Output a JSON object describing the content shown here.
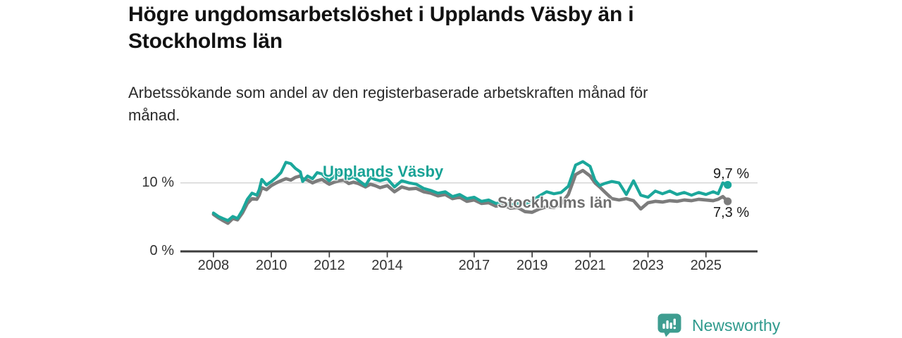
{
  "header": {
    "title_line1": "Högre ungdomsarbetslöshet i Upplands Väsby än i",
    "title_line2": "Stockholms län",
    "subtitle_line1": "Arbetssökande som andel av den registerbaserade arbetskraften månad för",
    "subtitle_line2": "månad."
  },
  "chart_data": {
    "type": "line",
    "title": "Högre ungdomsarbetslöshet i Upplands Väsby än i Stockholms län",
    "subtitle": "Arbetssökande som andel av den registerbaserade arbetskraften månad för månad.",
    "xlabel": "",
    "ylabel": "",
    "xlim": [
      2006.86,
      2026.78
    ],
    "ylim": [
      0,
      15
    ],
    "gridline_values": [
      10
    ],
    "legend_position": "inline-labels",
    "x_ticks": [
      {
        "label": "2008",
        "year": 2008
      },
      {
        "label": "2010",
        "year": 2010
      },
      {
        "label": "2012",
        "year": 2012
      },
      {
        "label": "2014",
        "year": 2014
      },
      {
        "label": "2017",
        "year": 2017
      },
      {
        "label": "2019",
        "year": 2019
      },
      {
        "label": "2021",
        "year": 2021
      },
      {
        "label": "2023",
        "year": 2023
      },
      {
        "label": "2025",
        "year": 2025
      }
    ],
    "y_ticks": [
      {
        "label": "0 %",
        "value": 0
      },
      {
        "label": "10 %",
        "value": 10
      }
    ],
    "x_years": [
      2008.0,
      2008.17,
      2008.33,
      2008.5,
      2008.67,
      2008.83,
      2009.0,
      2009.17,
      2009.33,
      2009.5,
      2009.58,
      2009.67,
      2009.83,
      2010.0,
      2010.17,
      2010.33,
      2010.5,
      2010.67,
      2010.83,
      2011.0,
      2011.08,
      2011.25,
      2011.42,
      2011.58,
      2011.75,
      2011.92,
      2012.0,
      2012.17,
      2012.33,
      2012.5,
      2012.67,
      2012.83,
      2013.0,
      2013.25,
      2013.42,
      2013.58,
      2013.75,
      2014.0,
      2014.25,
      2014.5,
      2014.75,
      2015.0,
      2015.25,
      2015.5,
      2015.75,
      2016.0,
      2016.25,
      2016.5,
      2016.75,
      2017.0,
      2017.25,
      2017.5,
      2017.75,
      2018.0,
      2018.25,
      2018.5,
      2018.75,
      2019.0,
      2019.25,
      2019.5,
      2019.75,
      2020.0,
      2020.25,
      2020.5,
      2020.75,
      2021.0,
      2021.17,
      2021.33,
      2021.5,
      2021.75,
      2022.0,
      2022.25,
      2022.5,
      2022.75,
      2023.0,
      2023.25,
      2023.5,
      2023.75,
      2024.0,
      2024.25,
      2024.5,
      2024.75,
      2025.0,
      2025.25,
      2025.42,
      2025.58,
      2025.75
    ],
    "series": [
      {
        "name": "Upplands Väsby",
        "color": "#1ba79b",
        "end_label": "9,7 %",
        "end_value": 9.7,
        "values": [
          5.6,
          5.1,
          4.8,
          4.5,
          5.1,
          4.8,
          6.0,
          7.6,
          8.5,
          8.2,
          9.0,
          10.5,
          9.7,
          10.2,
          10.8,
          11.5,
          13.0,
          12.8,
          12.1,
          11.6,
          10.2,
          11.0,
          10.6,
          11.5,
          11.3,
          10.6,
          10.3,
          11.0,
          11.5,
          11.3,
          10.6,
          10.9,
          10.4,
          9.6,
          10.8,
          10.5,
          10.3,
          10.6,
          9.4,
          10.3,
          10.0,
          9.8,
          9.2,
          8.9,
          8.5,
          8.7,
          8.0,
          8.3,
          7.7,
          7.9,
          7.3,
          7.5,
          7.0,
          7.2,
          6.8,
          7.0,
          6.9,
          7.4,
          8.1,
          8.7,
          8.4,
          8.6,
          9.5,
          12.6,
          13.1,
          12.4,
          10.4,
          9.6,
          9.9,
          10.2,
          10.0,
          8.3,
          10.3,
          8.2,
          7.9,
          8.8,
          8.4,
          8.8,
          8.3,
          8.6,
          8.2,
          8.6,
          8.3,
          8.7,
          8.4,
          10.0,
          9.7
        ]
      },
      {
        "name": "Stockholms län",
        "color": "#7c7c7c",
        "end_label": "7,3 %",
        "end_value": 7.3,
        "values": [
          5.4,
          4.9,
          4.5,
          4.1,
          4.8,
          4.6,
          5.6,
          7.0,
          7.7,
          7.6,
          8.2,
          9.3,
          9.0,
          9.6,
          10.0,
          10.3,
          10.6,
          10.4,
          10.8,
          11.0,
          10.6,
          10.4,
          10.0,
          10.3,
          10.5,
          10.0,
          9.8,
          10.1,
          10.3,
          10.4,
          9.9,
          10.1,
          9.9,
          9.4,
          9.8,
          9.6,
          9.3,
          9.6,
          8.7,
          9.4,
          9.1,
          9.2,
          8.7,
          8.5,
          8.1,
          8.3,
          7.7,
          7.9,
          7.3,
          7.5,
          7.0,
          7.1,
          6.6,
          6.8,
          6.3,
          6.4,
          5.8,
          5.7,
          6.2,
          6.5,
          6.4,
          6.9,
          8.3,
          11.2,
          11.8,
          11.0,
          10.0,
          9.4,
          8.7,
          7.7,
          7.5,
          7.7,
          7.4,
          6.2,
          7.1,
          7.3,
          7.2,
          7.4,
          7.3,
          7.5,
          7.4,
          7.6,
          7.5,
          7.4,
          7.6,
          8.0,
          7.3
        ]
      }
    ]
  },
  "footer": {
    "brand": "Newsworthy"
  },
  "colors": {
    "accent_teal": "#1ba79b",
    "series_gray": "#7c7c7c",
    "brand_teal": "#3e9d90",
    "axis": "#3c3c3c",
    "gridline": "#d2d2d2",
    "tick_text": "#333333",
    "value_label": "#1a1a1a"
  }
}
